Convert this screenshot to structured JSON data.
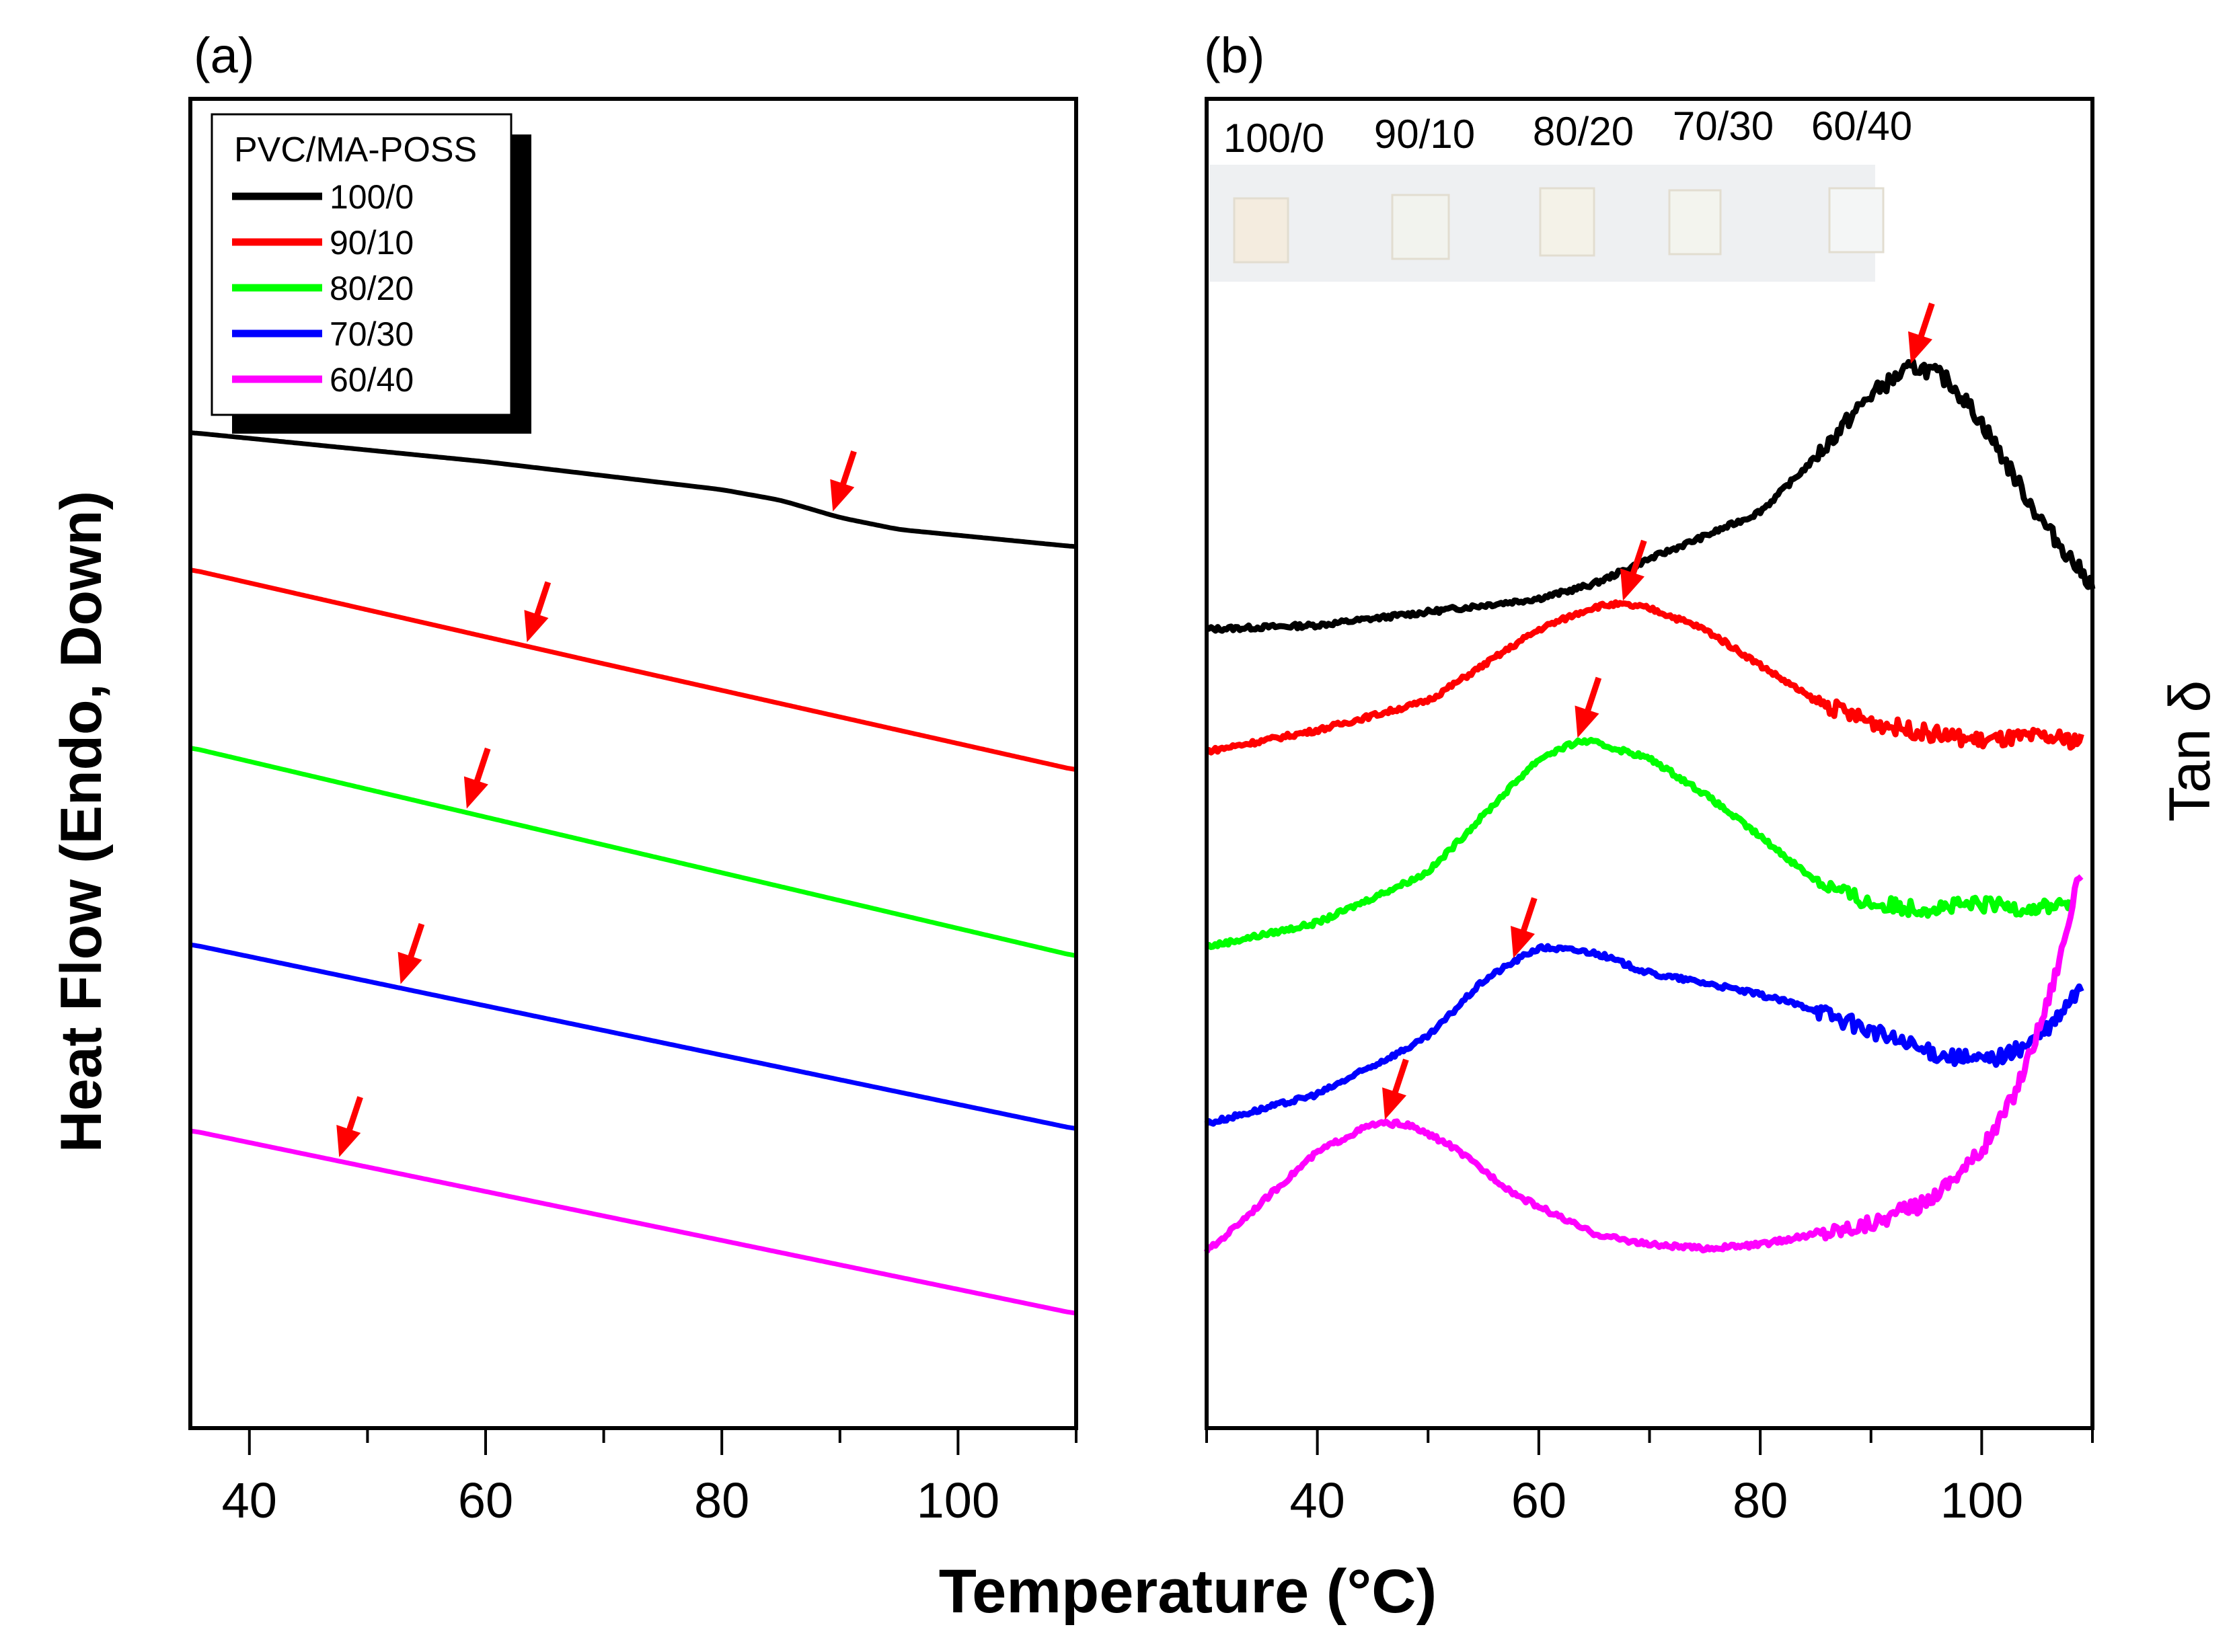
{
  "chart_data": [
    {
      "type": "line",
      "panel_label": "(a)",
      "ylabel": "Heat Flow (Endo, Down)",
      "xlabel": "Temperature (°C)",
      "xlim": [
        35,
        110
      ],
      "xticks": [
        40,
        60,
        80,
        100
      ],
      "y_units": "arbitrary (no y ticks)",
      "ylim": [
        0,
        100
      ],
      "legend": {
        "title": "PVC/MA-POSS",
        "placement": "top-left"
      },
      "series": [
        {
          "name": "100/0",
          "color": "#000000",
          "x": [
            35,
            60,
            80,
            85,
            90,
            95,
            110
          ],
          "y": [
            74.9,
            72.7,
            70.6,
            69.8,
            68.5,
            67.6,
            66.3
          ],
          "marker_x": 89.4
        },
        {
          "name": "90/10",
          "color": "#ff0000",
          "x": [
            35,
            70,
            110
          ],
          "y": [
            64.6,
            57.5,
            49.5
          ],
          "marker_x": 63.5
        },
        {
          "name": "80/20",
          "color": "#00ff00",
          "x": [
            35,
            110
          ],
          "y": [
            51.2,
            35.5
          ],
          "marker_x": 58.4
        },
        {
          "name": "70/30",
          "color": "#0000ff",
          "x": [
            35,
            110
          ],
          "y": [
            36.4,
            22.5
          ],
          "marker_x": 52.8
        },
        {
          "name": "60/40",
          "color": "#ff00ff",
          "x": [
            35,
            110
          ],
          "y": [
            22.4,
            8.6
          ],
          "marker_x": 47.6
        }
      ]
    },
    {
      "type": "line",
      "panel_label": "(b)",
      "ylabel": "Tan δ",
      "xlabel": "Temperature (°C)",
      "xlim": [
        30,
        110
      ],
      "xticks": [
        40,
        60,
        80,
        100
      ],
      "y_units": "arbitrary (no y ticks)",
      "ylim": [
        0,
        100
      ],
      "inset_photo_labels": [
        "100/0",
        "90/10",
        "80/20",
        "70/30",
        "60/40"
      ],
      "series": [
        {
          "name": "100/0",
          "color": "#000000",
          "x": [
            30,
            40,
            50,
            60,
            65,
            70,
            75,
            80,
            85,
            90,
            94,
            97,
            100,
            105,
            110
          ],
          "y": [
            60.1,
            60.4,
            61.4,
            62.4,
            63.5,
            65.4,
            67.1,
            68.9,
            73.0,
            77.8,
            80.0,
            78.9,
            75.7,
            68.7,
            63.3
          ],
          "marker_x": 93.6
        },
        {
          "name": "90/10",
          "color": "#ff0000",
          "x": [
            30,
            40,
            50,
            55,
            60,
            65,
            67,
            70,
            75,
            80,
            85,
            90,
            95,
            100,
            105,
            109
          ],
          "y": [
            50.9,
            52.5,
            54.7,
            57.4,
            60.1,
            61.8,
            62.0,
            61.7,
            60.1,
            57.4,
            54.7,
            53.1,
            52.3,
            51.7,
            52.0,
            51.7
          ],
          "marker_x": 67.6
        },
        {
          "name": "80/20",
          "color": "#00ff00",
          "x": [
            30,
            40,
            50,
            55,
            60,
            64,
            70,
            75,
            80,
            85,
            90,
            95,
            100,
            105,
            108
          ],
          "y": [
            36.2,
            38.0,
            41.8,
            46.1,
            50.4,
            51.8,
            50.4,
            47.7,
            44.5,
            41.2,
            39.4,
            39.1,
            39.4,
            39.1,
            39.6
          ],
          "marker_x": 63.5
        },
        {
          "name": "70/30",
          "color": "#0000ff",
          "x": [
            30,
            40,
            50,
            55,
            60,
            65,
            70,
            75,
            80,
            85,
            90,
            95,
            100,
            103,
            106,
            109
          ],
          "y": [
            22.9,
            25.1,
            29.4,
            33.7,
            36.2,
            35.8,
            34.2,
            33.5,
            32.6,
            31.5,
            29.9,
            28.3,
            27.6,
            28.3,
            29.9,
            33.2
          ],
          "marker_x": 57.7
        },
        {
          "name": "60/40",
          "color": "#ff00ff",
          "x": [
            30,
            35,
            40,
            45,
            48,
            52,
            58,
            65,
            70,
            75,
            80,
            85,
            90,
            95,
            100,
            103,
            106,
            108,
            109
          ],
          "y": [
            13.2,
            17.0,
            20.8,
            22.9,
            22.9,
            21.3,
            17.5,
            14.6,
            13.8,
            13.5,
            13.8,
            14.6,
            15.4,
            17.0,
            20.8,
            25.1,
            32.1,
            38.5,
            42.8
          ],
          "marker_x": 46.1
        }
      ]
    }
  ],
  "shared_xlabel": "Temperature (°C)",
  "arrow_color": "#ff0000"
}
